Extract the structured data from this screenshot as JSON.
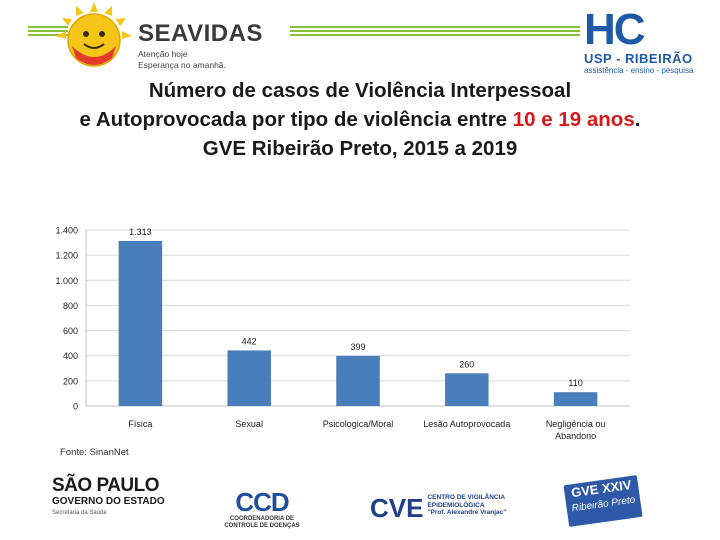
{
  "header": {
    "brand_name": "SEAVIDAS",
    "brand_tagline_1": "Atenção hoje",
    "brand_tagline_2": "Esperança no amanhã.",
    "hc_logo_text": "HC",
    "hc_institution": "USP - RIBEIRÃO",
    "hc_tagline": "assistência - ensino - pesquisa"
  },
  "title": {
    "line1": "Número de casos de Violência Interpessoal",
    "line2_pre": "e Autoprovocada por tipo de violência entre ",
    "line2_highlight": "10 e 19 anos",
    "line2_post": ".",
    "line3": "GVE Ribeirão Preto, 2015 a 2019"
  },
  "colors": {
    "bar": "#4a7ebb",
    "highlight": "#d7191c",
    "grid": "#d9d9d9",
    "sun": "#f5c518"
  },
  "chart_data": {
    "type": "bar",
    "categories": [
      "Física",
      "Sexual",
      "Psicologica/Moral",
      "Lesão Autoprovocada",
      "Negligência ou Abandono"
    ],
    "values": [
      1313,
      442,
      399,
      260,
      110
    ],
    "data_labels": [
      "1.313",
      "442",
      "399",
      "260",
      "110"
    ],
    "yticks": [
      0,
      200,
      400,
      600,
      800,
      1000,
      1200,
      1400
    ],
    "ytick_labels": [
      "0",
      "200",
      "400",
      "600",
      "800",
      "1.000",
      "1.200",
      "1.400"
    ],
    "ylim": [
      0,
      1400
    ],
    "grid": true,
    "legend": "none"
  },
  "source": "Fonte: SinanNet",
  "footer": {
    "sp_name": "SÃO PAULO",
    "sp_gov": "GOVERNO DO ESTADO",
    "sp_sec": "Secretaria da Saúde",
    "ccd_mark": "CCD",
    "ccd_sub1": "COORDENADORIA DE",
    "ccd_sub2": "CONTROLE DE DOENÇAS",
    "cve_mark": "CVE",
    "cve_sub1": "CENTRO DE VIGILÂNCIA",
    "cve_sub2": "EPIDEMIOLÓGICA",
    "cve_sub3": "\"Prof. Alexandre Vranjac\"",
    "gve_title": "GVE XXIV",
    "gve_sub": "Ribeirão Preto"
  }
}
